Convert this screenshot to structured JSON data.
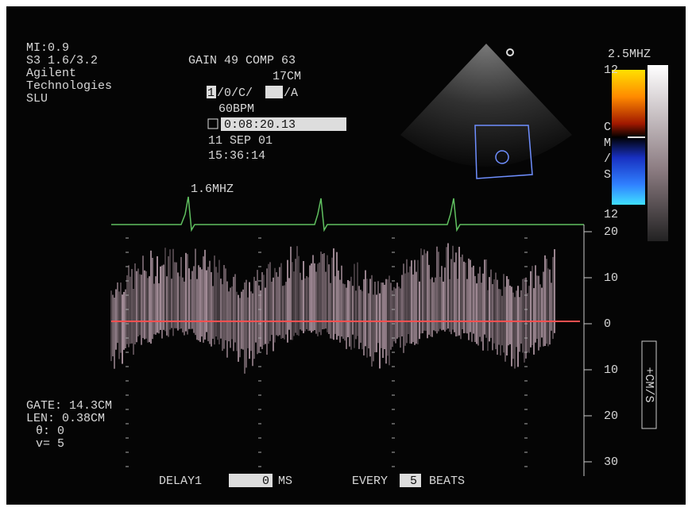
{
  "header": {
    "mi": "MI:0.9",
    "probe": "S3 1.6/3.2",
    "brand_1": "Agilent",
    "brand_2": "Technologies",
    "site": "SLU"
  },
  "settings": {
    "gain": "GAIN 49 COMP 63",
    "depth": "17CM",
    "mode_1": "1",
    "mode_2": "/0/C/",
    "mode_3": "/A",
    "heart_rate": "60BPM",
    "timer": "0:08:20.13",
    "date": "11 SEP 01",
    "time": "15:36:14"
  },
  "doppler_freq": "1.6MHZ",
  "color_bar": {
    "freq": "2.5MHZ",
    "top": "12",
    "unit": [
      "C",
      "M",
      "/",
      "S"
    ],
    "bottom": "12"
  },
  "scale": {
    "labels": [
      20,
      10,
      0,
      10,
      20,
      30
    ],
    "unit": "+CM/S"
  },
  "gate": {
    "gate": "GATE: 14.3CM",
    "len": "LEN: 0.38CM",
    "angle": "θ: 0",
    "v": "v= 5"
  },
  "footer": {
    "delay_label": "DELAY1",
    "delay_value": "0",
    "delay_unit": "MS",
    "every_label": "EVERY",
    "every_value": "5",
    "beats": "BEATS"
  }
}
